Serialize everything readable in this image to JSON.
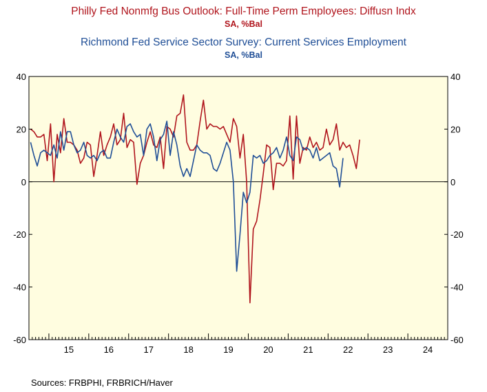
{
  "header": {
    "title1": "Philly Fed Nonmfg Bus Outlook: Full-Time Perm Employees: Diffusn Indx",
    "subtitle1": "SA, %Bal",
    "title2": "Richmond Fed Service Sector Survey: Current Services Employment",
    "subtitle2": "SA, %Bal"
  },
  "footer": {
    "sources": "Sources:  FRBPHI, FRBRICH/Haver"
  },
  "colors": {
    "philly": "#b0141c",
    "richmond": "#1f4e96",
    "plot_bg": "#fffde0"
  },
  "chart_data": {
    "type": "line",
    "title": "",
    "xlabel": "",
    "ylabel": "",
    "x_start": "2014-07",
    "x_end": "2024-12",
    "xlim": [
      "2014-07",
      "2024-12"
    ],
    "x_frequency": "monthly",
    "ylim": [
      -60,
      40
    ],
    "y_ticks": [
      -60,
      -40,
      -20,
      0,
      20,
      40
    ],
    "x_tick_labels": [
      "15",
      "16",
      "17",
      "18",
      "19",
      "20",
      "21",
      "22",
      "23",
      "24"
    ],
    "grid": false,
    "zero_line": true,
    "series": [
      {
        "name": "Philly Fed Nonmfg Bus Outlook: Full-Time Perm Employees: Diffusn Indx",
        "color": "#b0141c",
        "start": "2014-07",
        "values": [
          20,
          19,
          17,
          17,
          18,
          8,
          22,
          0,
          18,
          11,
          24,
          15,
          15,
          14,
          12,
          7,
          9,
          15,
          14,
          2,
          10,
          19,
          10,
          14,
          17,
          22,
          14,
          16,
          26,
          13,
          16,
          15,
          -1,
          7,
          10,
          15,
          19,
          14,
          13,
          17,
          5,
          21,
          20,
          17,
          25,
          26,
          33,
          15,
          12,
          12,
          14,
          23,
          31,
          20,
          22,
          21,
          21,
          20,
          21,
          18,
          15,
          24,
          21,
          9,
          18,
          0,
          -46,
          -18,
          -15,
          -7,
          3,
          14,
          13,
          -3,
          7,
          7,
          6,
          8,
          25,
          1,
          25,
          7,
          13,
          12,
          17,
          13,
          15,
          12,
          13,
          20,
          14,
          16,
          22,
          12,
          15,
          13,
          14,
          10,
          5,
          16
        ]
      },
      {
        "name": "Richmond Fed Service Sector Survey: Current Services Employment",
        "color": "#1f4e96",
        "start": "2014-07",
        "values": [
          15,
          10,
          6,
          11,
          12,
          11,
          10,
          14,
          9,
          19,
          12,
          19,
          19,
          14,
          11,
          12,
          15,
          10,
          9,
          10,
          8,
          11,
          12,
          9,
          9,
          15,
          20,
          17,
          15,
          21,
          22,
          19,
          17,
          18,
          10,
          20,
          22,
          17,
          8,
          16,
          18,
          23,
          10,
          19,
          14,
          6,
          2,
          5,
          2,
          8,
          14,
          12,
          11,
          11,
          10,
          5,
          4,
          7,
          11,
          15,
          12,
          0,
          -34,
          -20,
          -4,
          -8,
          -4,
          10,
          9,
          10,
          7,
          8,
          10,
          11,
          13,
          9,
          12,
          17,
          10,
          8,
          17,
          16,
          12,
          13,
          12,
          9,
          13,
          8,
          9,
          10,
          11,
          6,
          5,
          -2,
          9
        ]
      }
    ]
  }
}
